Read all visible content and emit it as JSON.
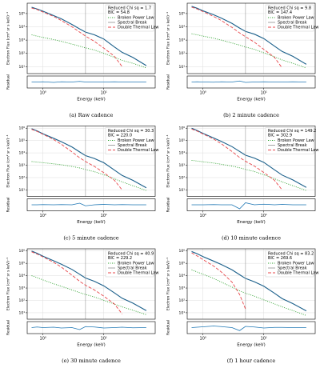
{
  "chart_data": [
    {
      "type": "line",
      "caption": "(a) Raw cadence",
      "annotation": [
        "Reduced Chi sq = 1.7",
        "BIC = 54.8"
      ],
      "xlabel": "Energy (keV)",
      "ylabel": "Electron Flux (cm² sr s keV)⁻¹",
      "residual_label": "Residual",
      "log_x": true,
      "log_y": true,
      "grid": true,
      "legend": "upper right",
      "x": [
        0.65,
        0.8,
        1,
        1.5,
        2,
        3,
        4,
        5,
        7,
        10,
        15,
        20,
        30,
        50
      ],
      "xlim": [
        0.55,
        70
      ],
      "xticks": [
        {
          "value": 1,
          "label": "10⁰"
        },
        {
          "value": 10,
          "label": "10¹"
        }
      ],
      "ylim": [
        3,
        600000
      ],
      "yticks": [
        {
          "value": 10,
          "label": "10¹"
        },
        {
          "value": 100,
          "label": "10²"
        },
        {
          "value": 1000,
          "label": "10³"
        },
        {
          "value": 10000,
          "label": "10⁴"
        },
        {
          "value": 100000,
          "label": "10⁵"
        }
      ],
      "series": [
        {
          "color": "#1a5f8a",
          "style": "solid",
          "values": [
            300000,
            220000,
            150000,
            70000,
            40000,
            15000,
            7000,
            4000,
            2500,
            1200,
            300,
            120,
            50,
            12
          ]
        },
        {
          "name": "Broken Power Law",
          "color": "#2ca02c",
          "style": "dotted",
          "values": [
            2500,
            2000,
            1600,
            1100,
            800,
            500,
            350,
            260,
            180,
            100,
            50,
            30,
            18,
            8
          ]
        },
        {
          "name": "Spectral Break",
          "color": "#9a9a9a",
          "style": "solid",
          "x": 5
        },
        {
          "name": "Double Thermal Law",
          "color": "#e8474b",
          "style": "dashed",
          "values": [
            260000,
            200000,
            130000,
            60000,
            30000,
            10000,
            4000,
            2000,
            800,
            250,
            60,
            10,
            null,
            null
          ]
        }
      ],
      "residual": {
        "color": "#1f77b4",
        "ylim": [
          -3,
          3
        ],
        "values": [
          0,
          0,
          0.1,
          -0.2,
          0.1,
          0,
          0.3,
          0,
          0,
          0,
          0.1,
          0,
          0,
          0
        ]
      }
    },
    {
      "type": "line",
      "caption": "(b) 2 minute cadence",
      "annotation": [
        "Reduced Chi sq = 9.8",
        "BIC = 147.4"
      ],
      "xlabel": "Energy (keV)",
      "ylabel": "Electron Flux (cm² sr s keV)⁻¹",
      "residual_label": "Residual",
      "log_x": true,
      "log_y": true,
      "grid": true,
      "legend": "upper right",
      "x": [
        0.65,
        0.8,
        1,
        1.5,
        2,
        3,
        4,
        5,
        7,
        10,
        15,
        20,
        30,
        50
      ],
      "xlim": [
        0.55,
        70
      ],
      "xticks": [
        {
          "value": 1,
          "label": "10⁰"
        },
        {
          "value": 10,
          "label": "10¹"
        }
      ],
      "ylim": [
        3,
        600000
      ],
      "yticks": [
        {
          "value": 10,
          "label": "10¹"
        },
        {
          "value": 100,
          "label": "10²"
        },
        {
          "value": 1000,
          "label": "10³"
        },
        {
          "value": 10000,
          "label": "10⁴"
        },
        {
          "value": 100000,
          "label": "10⁵"
        }
      ],
      "series": [
        {
          "color": "#1a5f8a",
          "style": "solid",
          "values": [
            350000,
            250000,
            160000,
            80000,
            45000,
            18000,
            8000,
            4500,
            2800,
            1300,
            350,
            140,
            60,
            15
          ]
        },
        {
          "name": "Broken Power Law",
          "color": "#2ca02c",
          "style": "dotted",
          "values": [
            3000,
            2500,
            2000,
            1400,
            1000,
            600,
            420,
            300,
            200,
            110,
            55,
            32,
            18,
            8
          ]
        },
        {
          "name": "Spectral Break",
          "color": "#9a9a9a",
          "style": "solid",
          "x": 5
        },
        {
          "name": "Double Thermal Law",
          "color": "#e8474b",
          "style": "dashed",
          "values": [
            300000,
            220000,
            140000,
            60000,
            30000,
            9000,
            3500,
            1800,
            700,
            200,
            50,
            8,
            null,
            null
          ]
        }
      ],
      "residual": {
        "color": "#1f77b4",
        "ylim": [
          -3,
          3
        ],
        "values": [
          0,
          0.1,
          0,
          -0.1,
          0.1,
          0,
          0.5,
          -0.2,
          0,
          0.1,
          0,
          0,
          0.1,
          0
        ]
      }
    },
    {
      "type": "line",
      "caption": "(c) 5 minute cadence",
      "annotation": [
        "Reduced Chi sq = 30.3",
        "BIC = 220.0"
      ],
      "xlabel": "Energy (keV)",
      "ylabel": "Electron Flux (cm² sr s keV)⁻¹",
      "residual_label": "Residual",
      "log_x": true,
      "log_y": true,
      "grid": true,
      "legend": "upper right",
      "x": [
        0.65,
        0.8,
        1,
        1.5,
        2,
        3,
        4,
        5,
        7,
        10,
        15,
        20,
        30,
        50
      ],
      "xlim": [
        0.55,
        70
      ],
      "xticks": [
        {
          "value": 1,
          "label": "10⁰"
        },
        {
          "value": 10,
          "label": "10¹"
        }
      ],
      "ylim": [
        3,
        1500000
      ],
      "yticks": [
        {
          "value": 10,
          "label": "10¹"
        },
        {
          "value": 100,
          "label": "10²"
        },
        {
          "value": 1000,
          "label": "10³"
        },
        {
          "value": 10000,
          "label": "10⁴"
        },
        {
          "value": 100000,
          "label": "10⁵"
        },
        {
          "value": 1000000,
          "label": "10⁶"
        }
      ],
      "series": [
        {
          "color": "#1a5f8a",
          "style": "solid",
          "values": [
            900000,
            600000,
            350000,
            150000,
            80000,
            30000,
            12000,
            6000,
            3500,
            1600,
            400,
            150,
            60,
            15
          ]
        },
        {
          "name": "Broken Power Law",
          "color": "#2ca02c",
          "style": "dotted",
          "values": [
            2000,
            1800,
            1600,
            1300,
            1100,
            800,
            600,
            450,
            300,
            170,
            80,
            45,
            22,
            9
          ]
        },
        {
          "name": "Spectral Break",
          "color": "#9a9a9a",
          "style": "solid",
          "x": 5
        },
        {
          "name": "Double Thermal Law",
          "color": "#e8474b",
          "style": "dashed",
          "values": [
            800000,
            550000,
            320000,
            120000,
            50000,
            12000,
            4000,
            2000,
            800,
            250,
            60,
            10,
            null,
            null
          ]
        }
      ],
      "residual": {
        "color": "#1f77b4",
        "ylim": [
          -3,
          3
        ],
        "values": [
          0,
          0,
          0.1,
          0,
          0.1,
          0,
          0.8,
          -0.5,
          0,
          0.2,
          0,
          0.1,
          0,
          0
        ]
      }
    },
    {
      "type": "line",
      "caption": "(d) 10 minute cadence",
      "annotation": [
        "Reduced Chi sq = 149.2",
        "BIC = 302.9"
      ],
      "xlabel": "Energy (keV)",
      "ylabel": "Electron Flux (cm² sr s keV)⁻¹",
      "residual_label": "Residual",
      "log_x": true,
      "log_y": true,
      "grid": true,
      "legend": "upper right",
      "x": [
        0.65,
        0.8,
        1,
        1.5,
        2,
        3,
        4,
        5,
        7,
        10,
        15,
        20,
        30,
        50
      ],
      "xlim": [
        0.55,
        70
      ],
      "xticks": [
        {
          "value": 1,
          "label": "10⁰"
        },
        {
          "value": 10,
          "label": "10¹"
        }
      ],
      "ylim": [
        3,
        1500000
      ],
      "yticks": [
        {
          "value": 10,
          "label": "10¹"
        },
        {
          "value": 100,
          "label": "10²"
        },
        {
          "value": 1000,
          "label": "10³"
        },
        {
          "value": 10000,
          "label": "10⁴"
        },
        {
          "value": 100000,
          "label": "10⁵"
        },
        {
          "value": 1000000,
          "label": "10⁶"
        }
      ],
      "series": [
        {
          "color": "#1a5f8a",
          "style": "solid",
          "values": [
            1000000,
            650000,
            380000,
            160000,
            85000,
            32000,
            13000,
            6500,
            3800,
            1700,
            420,
            160,
            65,
            16
          ]
        },
        {
          "name": "Broken Power Law",
          "color": "#2ca02c",
          "style": "dotted",
          "values": [
            2500,
            2200,
            1900,
            1500,
            1200,
            850,
            620,
            460,
            310,
            170,
            80,
            45,
            22,
            9
          ]
        },
        {
          "name": "Spectral Break",
          "color": "#9a9a9a",
          "style": "solid",
          "x": 5
        },
        {
          "name": "Double Thermal Law",
          "color": "#e8474b",
          "style": "dashed",
          "values": [
            850000,
            580000,
            340000,
            130000,
            55000,
            13000,
            4200,
            2100,
            850,
            260,
            60,
            10,
            null,
            null
          ]
        }
      ],
      "residual": {
        "color": "#1f77b4",
        "ylim": [
          -3,
          3
        ],
        "values": [
          0,
          0,
          0,
          0.1,
          0,
          0,
          -2,
          1,
          0,
          0.3,
          0,
          0.2,
          0,
          0
        ]
      }
    },
    {
      "type": "line",
      "caption": "(e) 30 minute cadence",
      "annotation": [
        "Reduced Chi sq = 40.9",
        "BIC = 229.2"
      ],
      "xlabel": "Energy (keV)",
      "ylabel": "Electron Flux (cm² sr s keV)⁻¹",
      "residual_label": "Residual",
      "log_x": true,
      "log_y": true,
      "grid": true,
      "legend": "upper right",
      "x": [
        0.65,
        0.8,
        1,
        1.5,
        2,
        3,
        4,
        5,
        7,
        10,
        15,
        20,
        30,
        50
      ],
      "xlim": [
        0.55,
        70
      ],
      "xticks": [
        {
          "value": 1,
          "label": "10⁰"
        },
        {
          "value": 10,
          "label": "10¹"
        }
      ],
      "ylim": [
        3,
        1500000
      ],
      "yticks": [
        {
          "value": 10,
          "label": "10¹"
        },
        {
          "value": 100,
          "label": "10²"
        },
        {
          "value": 1000,
          "label": "10³"
        },
        {
          "value": 10000,
          "label": "10⁴"
        },
        {
          "value": 100000,
          "label": "10⁵"
        },
        {
          "value": 1000000,
          "label": "10⁶"
        }
      ],
      "series": [
        {
          "color": "#1a5f8a",
          "style": "solid",
          "values": [
            1000000,
            650000,
            380000,
            160000,
            85000,
            32000,
            13000,
            6500,
            3500,
            1500,
            400,
            150,
            60,
            15
          ]
        },
        {
          "name": "Broken Power Law",
          "color": "#2ca02c",
          "style": "dotted",
          "values": [
            10000,
            7000,
            4500,
            2200,
            1400,
            700,
            430,
            300,
            190,
            100,
            50,
            30,
            16,
            7
          ]
        },
        {
          "name": "Spectral Break",
          "color": "#9a9a9a",
          "style": "solid",
          "x": 5
        },
        {
          "name": "Double Thermal Law",
          "color": "#e8474b",
          "style": "dashed",
          "values": [
            850000,
            560000,
            330000,
            120000,
            50000,
            11000,
            3500,
            1700,
            700,
            220,
            50,
            8,
            null,
            null
          ]
        }
      ],
      "residual": {
        "color": "#1f77b4",
        "ylim": [
          -3,
          3
        ],
        "values": [
          0,
          0.3,
          0,
          0.2,
          -0.2,
          0,
          -1,
          0.5,
          0.3,
          -0.2,
          0,
          0.2,
          -0.1,
          0
        ]
      }
    },
    {
      "type": "line",
      "caption": "(f) 1 hour cadence",
      "annotation": [
        "Reduced Chi sq = 83.2",
        "BIC = 269.6"
      ],
      "xlabel": "Energy (keV)",
      "ylabel": "Electron Flux (cm² sr s keV)⁻¹",
      "residual_label": "Residual",
      "log_x": true,
      "log_y": true,
      "grid": true,
      "legend": "upper right",
      "x": [
        0.65,
        0.8,
        1,
        1.5,
        2,
        3,
        4,
        5,
        7,
        10,
        15,
        20,
        30,
        50
      ],
      "xlim": [
        0.55,
        70
      ],
      "xticks": [
        {
          "value": 1,
          "label": "10⁰"
        },
        {
          "value": 10,
          "label": "10¹"
        }
      ],
      "ylim": [
        3,
        1500000
      ],
      "yticks": [
        {
          "value": 10,
          "label": "10¹"
        },
        {
          "value": 100,
          "label": "10²"
        },
        {
          "value": 1000,
          "label": "10³"
        },
        {
          "value": 10000,
          "label": "10⁴"
        },
        {
          "value": 100000,
          "label": "10⁵"
        },
        {
          "value": 1000000,
          "label": "10⁶"
        }
      ],
      "series": [
        {
          "color": "#1a5f8a",
          "style": "solid",
          "values": [
            900000,
            600000,
            350000,
            150000,
            80000,
            30000,
            12000,
            6000,
            3200,
            1400,
            380,
            140,
            55,
            14
          ]
        },
        {
          "name": "Broken Power Law",
          "color": "#2ca02c",
          "style": "dotted",
          "values": [
            30000,
            20000,
            13000,
            6000,
            3000,
            1200,
            600,
            380,
            220,
            110,
            52,
            30,
            15,
            6
          ]
        },
        {
          "name": "Spectral Break",
          "color": "#9a9a9a",
          "style": "solid",
          "x": 5
        },
        {
          "name": "Double Thermal Law",
          "color": "#e8474b",
          "style": "dashed",
          "values": [
            700000,
            400000,
            200000,
            60000,
            20000,
            3000,
            300,
            20,
            null,
            null,
            null,
            null,
            null,
            null
          ]
        }
      ],
      "residual": {
        "color": "#1f77b4",
        "ylim": [
          -3,
          3
        ],
        "values": [
          0,
          0.2,
          0.4,
          0.8,
          0.5,
          0,
          -1.5,
          0.6,
          0.3,
          -0.2,
          0.1,
          0.1,
          0,
          0
        ]
      }
    }
  ]
}
